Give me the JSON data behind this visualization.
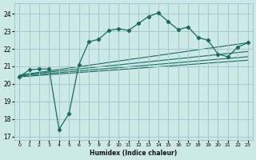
{
  "title": "",
  "xlabel": "Humidex (Indice chaleur)",
  "xlim": [
    -0.5,
    23.5
  ],
  "ylim": [
    16.8,
    24.6
  ],
  "yticks": [
    17,
    18,
    19,
    20,
    21,
    22,
    23,
    24
  ],
  "xticks": [
    0,
    1,
    2,
    3,
    4,
    5,
    6,
    7,
    8,
    9,
    10,
    11,
    12,
    13,
    14,
    15,
    16,
    17,
    18,
    19,
    20,
    21,
    22,
    23
  ],
  "bg_color": "#cce9e7",
  "grid_color": "#a0cac8",
  "line_color": "#1a6b5e",
  "main_line_x": [
    0,
    1,
    2,
    3,
    4,
    5,
    6,
    7,
    8,
    9,
    10,
    11,
    12,
    13,
    14,
    15,
    16,
    17,
    18,
    19,
    20,
    21,
    22,
    23
  ],
  "main_line_y": [
    20.4,
    20.8,
    20.85,
    20.85,
    17.4,
    18.3,
    21.1,
    22.4,
    22.55,
    23.05,
    23.15,
    23.05,
    23.45,
    23.85,
    24.05,
    23.55,
    23.1,
    23.25,
    22.65,
    22.5,
    21.7,
    21.55,
    22.1,
    22.35
  ],
  "trend_lines": [
    {
      "x0": 0.0,
      "y0": 20.5,
      "x1": 23.0,
      "y1": 22.35
    },
    {
      "x0": 0.0,
      "y0": 20.5,
      "x1": 23.0,
      "y1": 21.85
    },
    {
      "x0": 0.0,
      "y0": 20.45,
      "x1": 23.0,
      "y1": 21.55
    },
    {
      "x0": 0.0,
      "y0": 20.4,
      "x1": 23.0,
      "y1": 21.35
    }
  ]
}
